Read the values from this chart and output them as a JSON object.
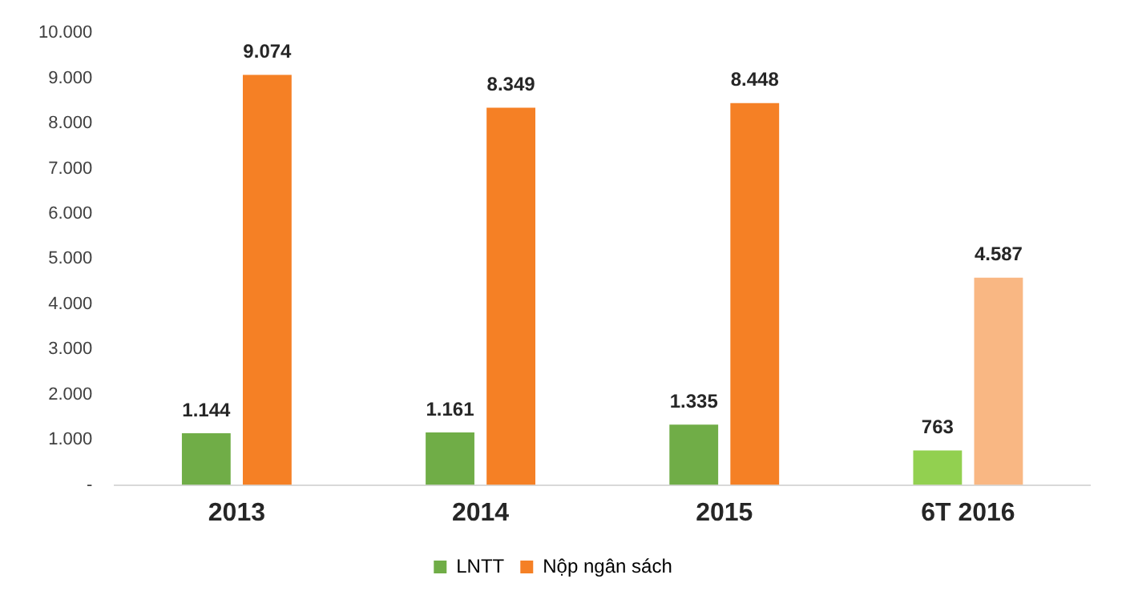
{
  "chart_data": {
    "type": "bar",
    "categories": [
      "2013",
      "2014",
      "2015",
      "6T 2016"
    ],
    "series": [
      {
        "name": "LNTT",
        "color": "#70ad47",
        "colors": [
          "#70ad47",
          "#70ad47",
          "#70ad47",
          "#92d050"
        ],
        "values": [
          1144,
          1161,
          1335,
          763
        ],
        "value_labels": [
          "1.144",
          "1.161",
          "1.335",
          "763"
        ]
      },
      {
        "name": "Nộp ngân sách",
        "color": "#f58025",
        "colors": [
          "#f58025",
          "#f58025",
          "#f58025",
          "#f9b783"
        ],
        "values": [
          9074,
          8349,
          8448,
          4587
        ],
        "value_labels": [
          "9.074",
          "8.349",
          "8.448",
          "4.587"
        ]
      }
    ],
    "ylim": [
      0,
      10000
    ],
    "yticks": [
      {
        "value": 0,
        "label": "-"
      },
      {
        "value": 1000,
        "label": "1.000"
      },
      {
        "value": 2000,
        "label": "2.000"
      },
      {
        "value": 3000,
        "label": "3.000"
      },
      {
        "value": 4000,
        "label": "4.000"
      },
      {
        "value": 5000,
        "label": "5.000"
      },
      {
        "value": 6000,
        "label": "6.000"
      },
      {
        "value": 7000,
        "label": "7.000"
      },
      {
        "value": 8000,
        "label": "8.000"
      },
      {
        "value": 9000,
        "label": "9.000"
      },
      {
        "value": 10000,
        "label": "10.000"
      }
    ],
    "grid": false,
    "legend": "bottom"
  }
}
